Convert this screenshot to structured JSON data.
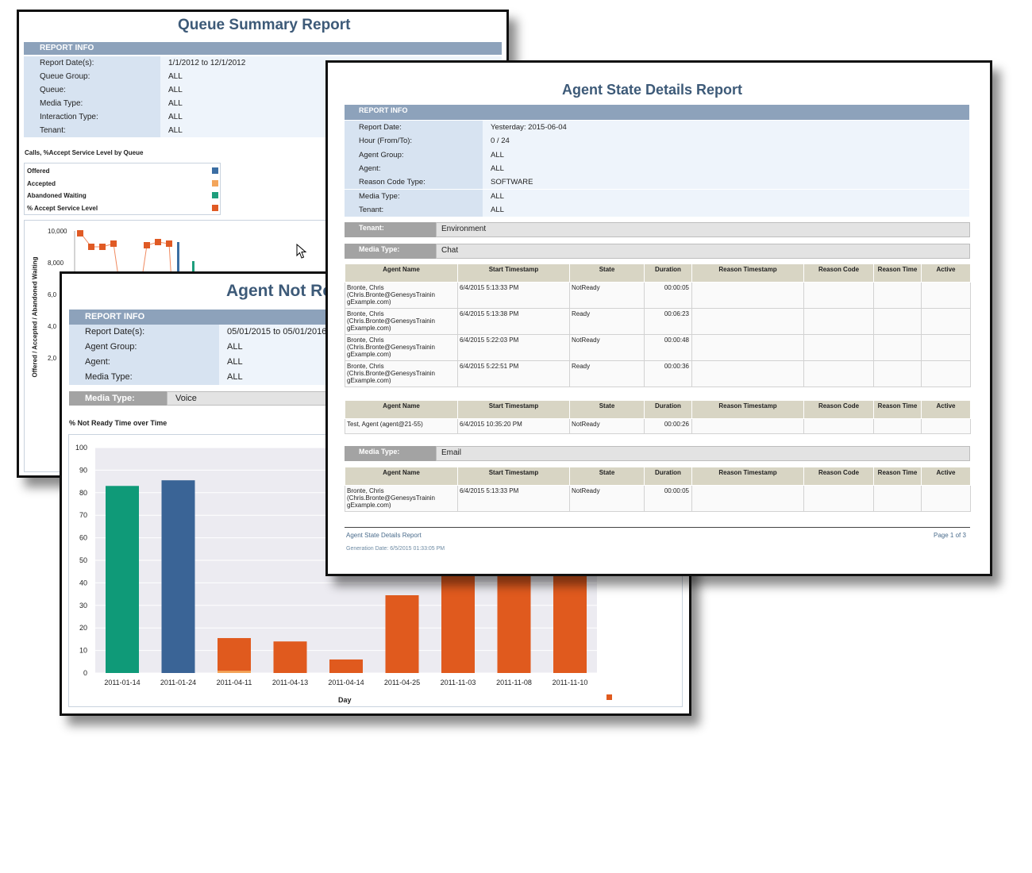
{
  "queue_summary": {
    "title": "Queue Summary Report",
    "report_info_label": "REPORT INFO",
    "info_rows": [
      {
        "label": "Report Date(s):",
        "value": "1/1/2012  to  12/1/2012"
      },
      {
        "label": "Queue Group:",
        "value": "ALL"
      },
      {
        "label": "Queue:",
        "value": "ALL"
      },
      {
        "label": "Media Type:",
        "value": "ALL"
      },
      {
        "label": "Interaction Type:",
        "value": "ALL"
      },
      {
        "label": "Tenant:",
        "value": "ALL"
      }
    ],
    "chart_title": "Calls, %Accept Service Level by Queue",
    "legend": [
      {
        "label": "Offered",
        "color": "#3b6ea3"
      },
      {
        "label": "Accepted",
        "color": "#f3a55a"
      },
      {
        "label": "Abandoned Waiting",
        "color": "#1e9e7c"
      },
      {
        "label": "% Accept Service Level",
        "color": "#e05a24"
      }
    ],
    "y_axis_label": "Offered / Accepted / Abandoned Waiting",
    "y_ticks": [
      "10,000",
      "8,000",
      "6,0",
      "4,0",
      "2,0"
    ]
  },
  "agent_not_ready": {
    "title": "Agent Not Re",
    "report_info_label": "REPORT INFO",
    "info_rows": [
      {
        "label": "Report Date(s):",
        "value": "05/01/2015 to 05/01/2016"
      },
      {
        "label": "Agent Group:",
        "value": "ALL"
      },
      {
        "label": "Agent:",
        "value": "ALL"
      },
      {
        "label": "Media Type:",
        "value": "ALL"
      }
    ],
    "media_type_label": "Media Type:",
    "media_type_value": "Voice",
    "chart_title": "% Not Ready Time over Time",
    "x_axis_label": "Day"
  },
  "chart_data": {
    "type": "bar",
    "title": "% Not Ready Time over Time",
    "xlabel": "Day",
    "ylabel": "",
    "ylim": [
      0,
      100
    ],
    "y_ticks": [
      0,
      10,
      20,
      30,
      40,
      50,
      60,
      70,
      80,
      90,
      100
    ],
    "categories": [
      "2011-01-14",
      "2011-01-24",
      "2011-04-11",
      "2011-04-13",
      "2011-04-14",
      "2011-04-25",
      "2011-11-03",
      "2011-11-08",
      "2011-11-10"
    ],
    "values": [
      83,
      85.5,
      15.5,
      14,
      6,
      34.5,
      100,
      100,
      100
    ],
    "colors": [
      "#0f9a78",
      "#3a6496",
      "#e05a1e",
      "#e05a1e",
      "#e05a1e",
      "#e05a1e",
      "#e05a1e",
      "#e05a1e",
      "#e05a1e"
    ]
  },
  "agent_state": {
    "title": "Agent State Details Report",
    "report_info_label": "REPORT INFO",
    "info_rows": [
      {
        "label": "Report Date:",
        "value": "Yesterday: 2015-06-04"
      },
      {
        "label": "Hour (From/To):",
        "value": "0 / 24"
      },
      {
        "label": "Agent Group:",
        "value": "ALL"
      },
      {
        "label": "Agent:",
        "value": "ALL"
      },
      {
        "label": "Reason Code Type:",
        "value": "SOFTWARE"
      },
      {
        "label": "Media Type:",
        "value": "ALL"
      },
      {
        "label": "Tenant:",
        "value": "ALL"
      }
    ],
    "tenant_label": "Tenant:",
    "tenant_value": "Environment",
    "media_label": "Media Type:",
    "columns": [
      "Agent Name",
      "Start Timestamp",
      "State",
      "Duration",
      "Reason Timestamp",
      "Reason Code",
      "Reason Time",
      "Active"
    ],
    "chat_media": "Chat",
    "chat_rows": [
      {
        "agent": "Bronte, Chris (Chris.Bronte@GenesysTrainin gExample.com)",
        "start": "6/4/2015 5:13:33 PM",
        "state": "NotReady",
        "duration": "00:00:05"
      },
      {
        "agent": "Bronte, Chris (Chris.Bronte@GenesysTrainin gExample.com)",
        "start": "6/4/2015 5:13:38 PM",
        "state": "Ready",
        "duration": "00:06:23"
      },
      {
        "agent": "Bronte, Chris (Chris.Bronte@GenesysTrainin gExample.com)",
        "start": "6/4/2015 5:22:03 PM",
        "state": "NotReady",
        "duration": "00:00:48"
      },
      {
        "agent": "Bronte, Chris (Chris.Bronte@GenesysTrainin gExample.com)",
        "start": "6/4/2015 5:22:51 PM",
        "state": "Ready",
        "duration": "00:00:36"
      }
    ],
    "chat_rows2": [
      {
        "agent": "Test, Agent (agent@21-55)",
        "start": "6/4/2015 10:35:20 PM",
        "state": "NotReady",
        "duration": "00:00:26"
      }
    ],
    "email_media": "Email",
    "email_rows": [
      {
        "agent": "Bronte, Chris (Chris.Bronte@GenesysTrainin gExample.com)",
        "start": "6/4/2015 5:13:33 PM",
        "state": "NotReady",
        "duration": "00:00:05"
      }
    ],
    "footer_title": "Agent State Details Report",
    "footer_page": "Page 1 of 3",
    "footer_generated": "Generation Date: 6/5/2015 01:33:05 PM"
  }
}
